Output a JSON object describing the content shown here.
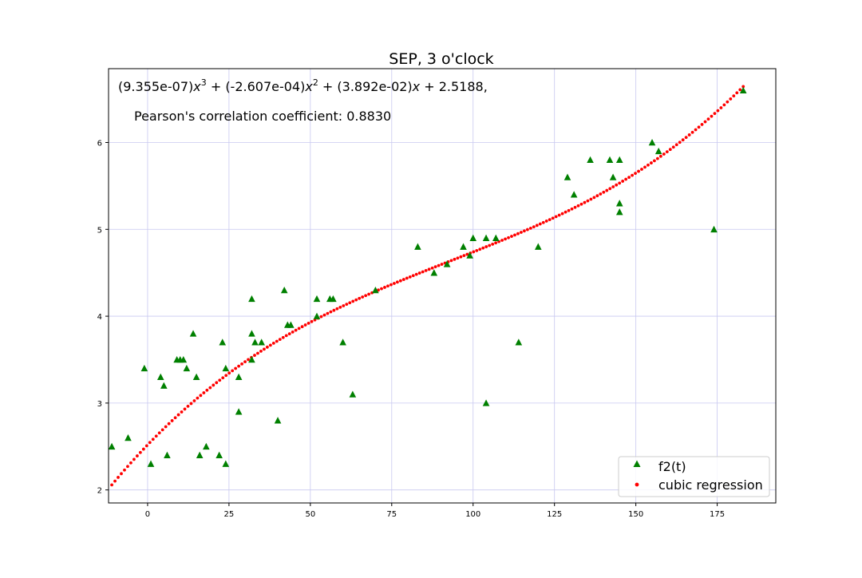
{
  "chart_data": {
    "type": "scatter",
    "title": "SEP, 3 o'clock",
    "equation": {
      "c3": "(9.355e-07)",
      "c2": " + (-2.607e-04)",
      "c1": " + (3.892e-02)",
      "c0": " + 2.5188,",
      "var": "x",
      "exp3": "3",
      "exp2": "2"
    },
    "pearson_text": "Pearson's correlation coefficient: 0.8830",
    "xlabel": "",
    "ylabel": "",
    "xlim": [
      -12,
      193
    ],
    "ylim": [
      1.85,
      6.85
    ],
    "x_ticks": [
      0,
      25,
      50,
      75,
      100,
      125,
      150,
      175
    ],
    "y_ticks": [
      2,
      3,
      4,
      5,
      6
    ],
    "grid": true,
    "legend_position": "lower right",
    "coefficients": {
      "a3": 9.355e-07,
      "a2": -0.0002607,
      "a1": 0.03892,
      "a0": 2.5188
    },
    "series": [
      {
        "name": "f2(t)",
        "marker": "triangle",
        "color": "#008000",
        "points": [
          [
            -11,
            2.5
          ],
          [
            -6,
            2.6
          ],
          [
            -1,
            3.4
          ],
          [
            1,
            2.3
          ],
          [
            4,
            3.3
          ],
          [
            5,
            3.2
          ],
          [
            6,
            2.4
          ],
          [
            9,
            3.5
          ],
          [
            10,
            3.5
          ],
          [
            11,
            3.5
          ],
          [
            12,
            3.4
          ],
          [
            14,
            3.8
          ],
          [
            15,
            3.3
          ],
          [
            16,
            2.4
          ],
          [
            18,
            2.5
          ],
          [
            22,
            2.4
          ],
          [
            23,
            3.7
          ],
          [
            24,
            3.4
          ],
          [
            24,
            2.3
          ],
          [
            28,
            3.3
          ],
          [
            28,
            2.9
          ],
          [
            32,
            4.2
          ],
          [
            32,
            3.8
          ],
          [
            32,
            3.5
          ],
          [
            33,
            3.7
          ],
          [
            35,
            3.7
          ],
          [
            40,
            2.8
          ],
          [
            42,
            4.3
          ],
          [
            43,
            3.9
          ],
          [
            44,
            3.9
          ],
          [
            52,
            4.2
          ],
          [
            52,
            4.0
          ],
          [
            56,
            4.2
          ],
          [
            57,
            4.2
          ],
          [
            60,
            3.7
          ],
          [
            63,
            3.1
          ],
          [
            70,
            4.3
          ],
          [
            83,
            4.8
          ],
          [
            88,
            4.5
          ],
          [
            92,
            4.6
          ],
          [
            97,
            4.8
          ],
          [
            99,
            4.7
          ],
          [
            100,
            4.9
          ],
          [
            104,
            4.9
          ],
          [
            104,
            3.0
          ],
          [
            107,
            4.9
          ],
          [
            114,
            3.7
          ],
          [
            120,
            4.8
          ],
          [
            129,
            5.6
          ],
          [
            131,
            5.4
          ],
          [
            136,
            5.8
          ],
          [
            142,
            5.8
          ],
          [
            143,
            5.6
          ],
          [
            145,
            5.8
          ],
          [
            145,
            5.3
          ],
          [
            145,
            5.2
          ],
          [
            155,
            6.0
          ],
          [
            157,
            5.9
          ],
          [
            174,
            5.0
          ],
          [
            183,
            6.6
          ]
        ]
      },
      {
        "name": "cubic regression",
        "marker": "dot",
        "color": "#ff0000",
        "x_range": [
          -11,
          183
        ],
        "n_points": 200
      }
    ]
  }
}
